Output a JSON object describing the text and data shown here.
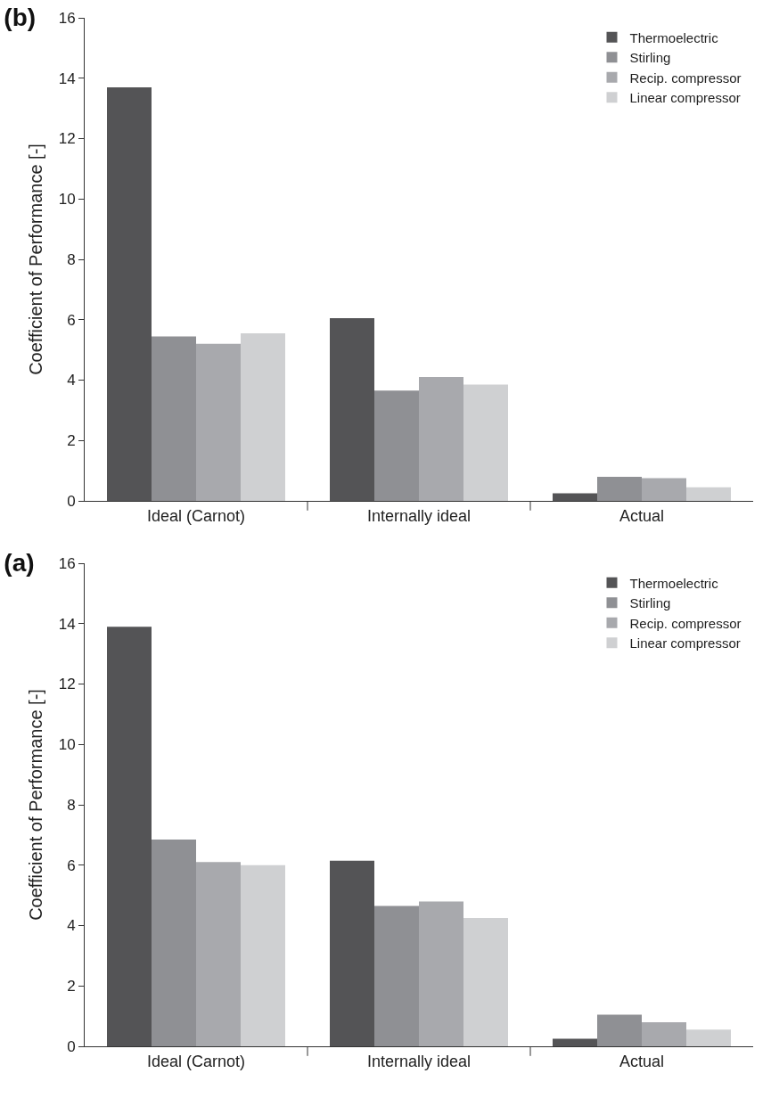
{
  "chart_data": [
    {
      "type": "bar",
      "title": "(b)",
      "ylabel": "Coefficient of Performance [-]",
      "categories": [
        "Ideal (Carnot)",
        "Internally ideal",
        "Actual"
      ],
      "ylim": [
        0,
        16
      ],
      "yticks": [
        0,
        2,
        4,
        6,
        8,
        10,
        12,
        14,
        16
      ],
      "grid": false,
      "legend": "top right",
      "series": [
        {
          "name": "Thermoelectric",
          "color": "#545456",
          "values": [
            13.7,
            6.05,
            0.25
          ]
        },
        {
          "name": "Stirling",
          "color": "#8f9094",
          "values": [
            5.45,
            3.65,
            0.8
          ]
        },
        {
          "name": "Recip. compressor",
          "color": "#a8a9ad",
          "values": [
            5.2,
            4.1,
            0.75
          ]
        },
        {
          "name": "Linear compressor",
          "color": "#cfd0d2",
          "values": [
            5.55,
            3.85,
            0.45
          ]
        }
      ]
    },
    {
      "type": "bar",
      "title": "(a)",
      "ylabel": "Coefficient of Performance [-]",
      "categories": [
        "Ideal (Carnot)",
        "Internally ideal",
        "Actual"
      ],
      "ylim": [
        0,
        16
      ],
      "yticks": [
        0,
        2,
        4,
        6,
        8,
        10,
        12,
        14,
        16
      ],
      "grid": false,
      "legend": "top right",
      "series": [
        {
          "name": "Thermoelectric",
          "color": "#545456",
          "values": [
            13.9,
            6.15,
            0.25
          ]
        },
        {
          "name": "Stirling",
          "color": "#8f9094",
          "values": [
            6.85,
            4.65,
            1.05
          ]
        },
        {
          "name": "Recip. compressor",
          "color": "#a8a9ad",
          "values": [
            6.1,
            4.8,
            0.8
          ]
        },
        {
          "name": "Linear compressor",
          "color": "#cfd0d2",
          "values": [
            6.0,
            4.25,
            0.55
          ]
        }
      ]
    }
  ]
}
